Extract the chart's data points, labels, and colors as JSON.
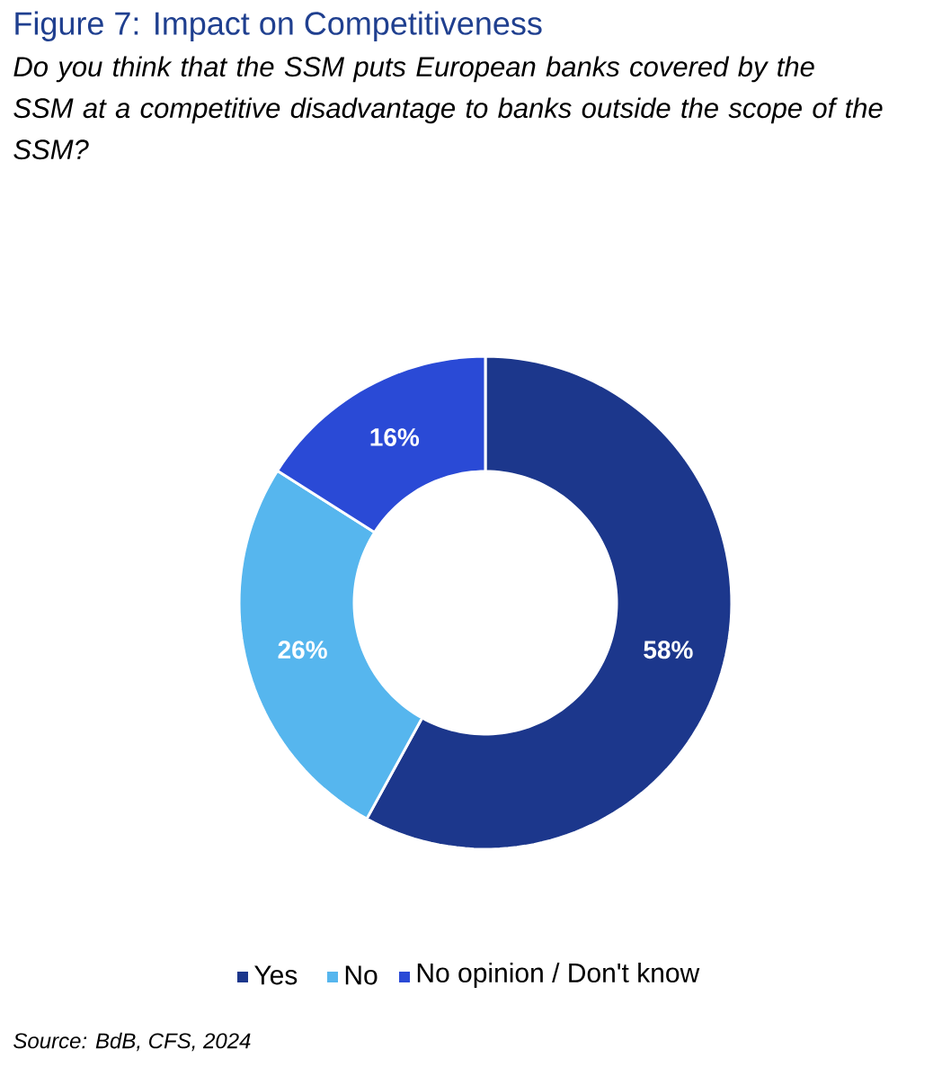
{
  "chart_data": {
    "type": "donut",
    "title": "Figure 7: Impact on Competitiveness",
    "subtitle": "Do you think that the SSM puts European banks covered by the SSM at a competitive disadvantage to banks outside the scope of the SSM?",
    "categories": [
      "Yes",
      "No",
      "No opinion / Don't know"
    ],
    "values": [
      58,
      26,
      16
    ],
    "value_labels": [
      "58%",
      "26%",
      "16%"
    ],
    "colors": [
      "#1c378c",
      "#56b6ee",
      "#2a4ad6"
    ],
    "legend": "bottom",
    "annotations": [
      "Source: BdB, CFS, 2024"
    ]
  }
}
